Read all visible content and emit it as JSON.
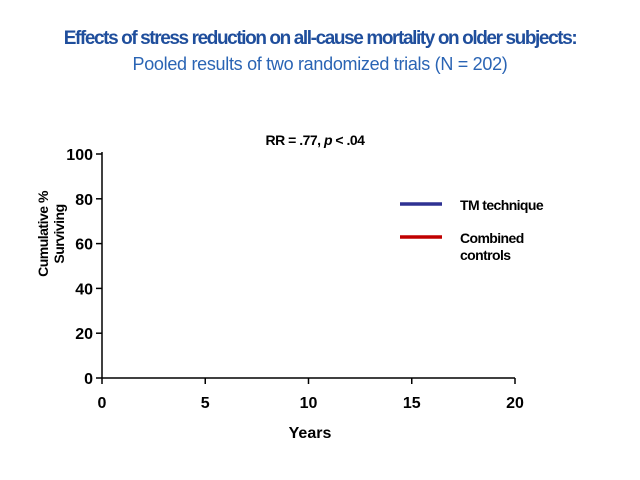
{
  "slide": {
    "title": "Effects of stress reduction on all-cause mortality on older subjects:",
    "subtitle": "Pooled results of two randomized trials (N = 202)"
  },
  "chart_data": {
    "type": "line",
    "annotation": {
      "prefix": "RR = .77, ",
      "italic": "p",
      "suffix": " < .04"
    },
    "xlabel": "Years",
    "ylabel_lines": [
      "Cumulative %",
      "Surviving"
    ],
    "xlim": [
      0,
      20
    ],
    "ylim": [
      0,
      100
    ],
    "x_ticks": [
      0,
      5,
      10,
      15,
      20
    ],
    "y_ticks": [
      0,
      20,
      40,
      60,
      80,
      100
    ],
    "grid": false,
    "legend_position": "right",
    "series": [
      {
        "name": "TM technique",
        "name_lines": [
          "TM technique"
        ],
        "color": "#2e3192",
        "x": [],
        "y": []
      },
      {
        "name": "Combined controls",
        "name_lines": [
          "Combined",
          "controls"
        ],
        "color": "#c00000",
        "x": [],
        "y": []
      }
    ]
  }
}
